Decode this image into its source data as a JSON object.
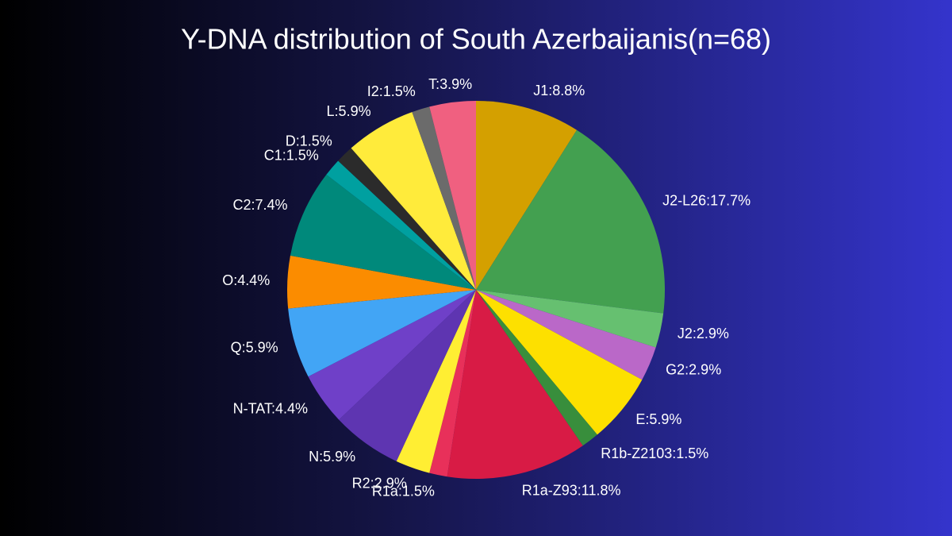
{
  "chart_data": {
    "type": "pie",
    "title": "Y-DNA distribution of South Azerbaijanis(n=68)",
    "values": [
      8.8,
      17.7,
      2.9,
      2.9,
      5.9,
      1.5,
      11.8,
      1.5,
      2.9,
      5.9,
      4.4,
      5.9,
      4.4,
      7.4,
      1.5,
      1.5,
      5.9,
      1.5,
      3.9
    ],
    "value_labels": [
      "J1:8.8%",
      "J2-L26:17.7%",
      "J2:2.9%",
      "G2:2.9%",
      "E:5.9%",
      "R1b-Z2103:1.5%",
      "R1a-Z93:11.8%",
      "R1a:1.5%",
      "R2:2.9%",
      "N:5.9%",
      "N-TAT:4.4%",
      "Q:5.9%",
      "O:4.4%",
      "C2:7.4%",
      "C1:1.5%",
      "D:1.5%",
      "L:5.9%",
      "I2:1.5%",
      "T:3.9%"
    ],
    "colors": [
      "#d4a000",
      "#43a050",
      "#66c070",
      "#ba68c8",
      "#fde000",
      "#388e3c",
      "#d81b45",
      "#e8305a",
      "#ffee33",
      "#5e35b1",
      "#6f40c8",
      "#42a5f5",
      "#fb8c00",
      "#00897b",
      "#00a0a0",
      "#2b2b2b",
      "#ffeb3b",
      "#6b6b6b",
      "#f06080"
    ]
  }
}
